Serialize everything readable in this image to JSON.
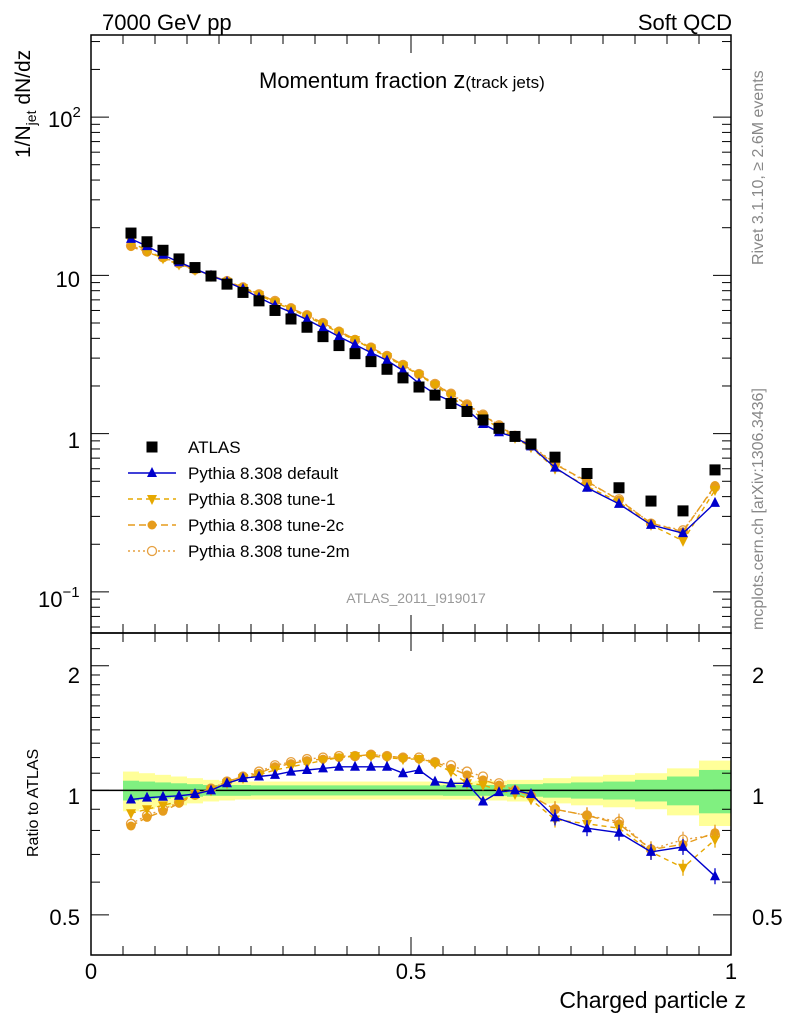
{
  "header": {
    "left": "7000 GeV pp",
    "right": "Soft QCD"
  },
  "title_main": "Momentum fraction ",
  "title_z": "z",
  "title_sub": "(track jets)",
  "side_right_top": "Rivet 3.1.10, ≥ 2.6M events",
  "side_right_bottom": "mcplots.cern.ch [arXiv:1306.3436]",
  "watermark": "ATLAS_2011_I919017",
  "ylabel_main_parts": {
    "a": "1/N",
    "sub": "jet",
    "b": " dN/dz"
  },
  "ylabel_ratio": "Ratio to ATLAS",
  "xlabel": "Charged particle z",
  "x_ticks": [
    "0",
    "0.5",
    "1"
  ],
  "main_y_ticks": {
    "hundred": "10",
    "hundred_exp": "2",
    "ten": "10",
    "one": "1",
    "tenth": "10",
    "tenth_exp": "−1"
  },
  "ratio_y_ticks": [
    "2",
    "1",
    "0.5"
  ],
  "legend": [
    {
      "label": "ATLAS"
    },
    {
      "label": "Pythia 8.308 default"
    },
    {
      "label": "Pythia 8.308 tune-1"
    },
    {
      "label": "Pythia 8.308 tune-2c"
    },
    {
      "label": "Pythia 8.308 tune-2m"
    }
  ],
  "colors": {
    "data": "#000000",
    "default": "#0000cc",
    "tune": "#e6a800",
    "tune2c": "#e69c1c",
    "tune2m": "#e6a040",
    "band_inner": "#80f080",
    "band_outer": "#ffff99"
  },
  "chart_data": {
    "type": "line",
    "xlabel": "Charged particle z",
    "ylabel": "1/N_jet dN/dz",
    "xlim": [
      0,
      1
    ],
    "ylim_main": [
      0.055,
      330
    ],
    "ylim_ratio": [
      0.4,
      2.4
    ],
    "y_scale": "log",
    "legend_position": "lower-left",
    "x": [
      0.0625,
      0.0875,
      0.1125,
      0.1375,
      0.1625,
      0.1875,
      0.2125,
      0.2375,
      0.2625,
      0.2875,
      0.3125,
      0.3375,
      0.3625,
      0.3875,
      0.4125,
      0.4375,
      0.4625,
      0.4875,
      0.5125,
      0.5375,
      0.5625,
      0.5875,
      0.6125,
      0.6375,
      0.6625,
      0.6875,
      0.725,
      0.775,
      0.825,
      0.875,
      0.925,
      0.975
    ],
    "series": [
      {
        "name": "ATLAS",
        "marker": "square",
        "values": [
          18.5,
          16.3,
          14.4,
          12.7,
          11.2,
          9.9,
          8.8,
          7.8,
          6.9,
          6.0,
          5.3,
          4.7,
          4.1,
          3.6,
          3.2,
          2.85,
          2.55,
          2.25,
          1.97,
          1.75,
          1.55,
          1.38,
          1.22,
          1.08,
          0.96,
          0.86,
          0.71,
          0.56,
          0.455,
          0.375,
          0.325,
          0.59
        ]
      },
      {
        "name": "Pythia 8.308 default",
        "marker": "triangle-up",
        "values": [
          17.0,
          15.3,
          13.5,
          12.1,
          11.0,
          9.95,
          9.1,
          8.2,
          7.25,
          6.45,
          5.85,
          5.25,
          4.65,
          4.1,
          3.65,
          3.25,
          2.9,
          2.5,
          2.08,
          1.78,
          1.6,
          1.42,
          1.15,
          1.02,
          0.95,
          0.83,
          0.61,
          0.455,
          0.36,
          0.265,
          0.235,
          0.365
        ]
      },
      {
        "name": "Pythia 8.308 tune-1",
        "marker": "triangle-down",
        "values": [
          16.3,
          14.3,
          12.8,
          11.7,
          10.8,
          9.9,
          9.1,
          8.3,
          7.5,
          6.75,
          6.1,
          5.5,
          4.9,
          4.35,
          3.9,
          3.45,
          3.05,
          2.68,
          2.35,
          2.02,
          1.72,
          1.43,
          1.26,
          1.08,
          0.94,
          0.82,
          0.6,
          0.465,
          0.37,
          0.265,
          0.21,
          0.44
        ]
      },
      {
        "name": "Pythia 8.308 tune-2c",
        "marker": "circle",
        "values": [
          15.2,
          14.0,
          12.9,
          11.8,
          10.9,
          10.0,
          9.2,
          8.4,
          7.6,
          6.85,
          6.2,
          5.6,
          5.0,
          4.45,
          3.95,
          3.5,
          3.1,
          2.72,
          2.37,
          2.05,
          1.78,
          1.52,
          1.31,
          1.12,
          0.96,
          0.83,
          0.64,
          0.5,
          0.38,
          0.272,
          0.24,
          0.47
        ]
      },
      {
        "name": "Pythia 8.308 tune-2m",
        "marker": "circle-open",
        "values": [
          15.4,
          14.2,
          13.0,
          11.9,
          10.9,
          10.0,
          9.2,
          8.4,
          7.6,
          6.9,
          6.2,
          5.6,
          5.0,
          4.4,
          3.9,
          3.5,
          3.1,
          2.72,
          2.38,
          2.06,
          1.79,
          1.53,
          1.32,
          1.13,
          0.97,
          0.84,
          0.65,
          0.49,
          0.385,
          0.27,
          0.245,
          0.46
        ]
      }
    ],
    "ratio": [
      {
        "name": "Pythia 8.308 default",
        "values": [
          0.95,
          0.96,
          0.965,
          0.97,
          0.98,
          1.0,
          1.04,
          1.07,
          1.08,
          1.09,
          1.11,
          1.12,
          1.13,
          1.14,
          1.14,
          1.14,
          1.14,
          1.1,
          1.12,
          1.05,
          1.04,
          1.04,
          0.94,
          0.99,
          1.0,
          0.98,
          0.86,
          0.81,
          0.79,
          0.71,
          0.73,
          0.62
        ]
      },
      {
        "name": "Pythia 8.308 tune-1",
        "values": [
          0.88,
          0.9,
          0.92,
          0.94,
          0.98,
          1.0,
          1.04,
          1.07,
          1.09,
          1.12,
          1.14,
          1.16,
          1.18,
          1.2,
          1.21,
          1.21,
          1.2,
          1.19,
          1.19,
          1.16,
          1.11,
          1.04,
          1.03,
          1.0,
          0.98,
          0.95,
          0.85,
          0.83,
          0.81,
          0.71,
          0.65,
          0.76
        ]
      },
      {
        "name": "Pythia 8.308 tune-2c",
        "values": [
          0.82,
          0.86,
          0.89,
          0.93,
          0.975,
          1.01,
          1.05,
          1.08,
          1.1,
          1.14,
          1.16,
          1.18,
          1.19,
          1.2,
          1.21,
          1.22,
          1.21,
          1.2,
          1.19,
          1.17,
          1.13,
          1.09,
          1.06,
          1.03,
          1.0,
          0.97,
          0.9,
          0.87,
          0.83,
          0.72,
          0.74,
          0.79
        ]
      },
      {
        "name": "Pythia 8.308 tune-2m",
        "values": [
          0.83,
          0.87,
          0.9,
          0.935,
          0.975,
          1.01,
          1.05,
          1.08,
          1.11,
          1.15,
          1.17,
          1.19,
          1.2,
          1.21,
          1.21,
          1.22,
          1.21,
          1.2,
          1.2,
          1.17,
          1.15,
          1.11,
          1.08,
          1.04,
          1.0,
          0.97,
          0.9,
          0.87,
          0.84,
          0.72,
          0.76,
          0.78
        ]
      }
    ],
    "ratio_band": {
      "inner_half_width": [
        0.055,
        0.05,
        0.045,
        0.04,
        0.035,
        0.03,
        0.03,
        0.03,
        0.028,
        0.028,
        0.028,
        0.028,
        0.028,
        0.028,
        0.028,
        0.028,
        0.028,
        0.028,
        0.028,
        0.028,
        0.03,
        0.03,
        0.03,
        0.03,
        0.035,
        0.035,
        0.04,
        0.045,
        0.05,
        0.06,
        0.08,
        0.12
      ],
      "outer_half_width": [
        0.11,
        0.1,
        0.09,
        0.08,
        0.07,
        0.06,
        0.055,
        0.05,
        0.05,
        0.05,
        0.05,
        0.05,
        0.05,
        0.05,
        0.05,
        0.05,
        0.05,
        0.05,
        0.05,
        0.05,
        0.05,
        0.05,
        0.055,
        0.055,
        0.06,
        0.06,
        0.07,
        0.08,
        0.09,
        0.1,
        0.13,
        0.18
      ]
    }
  }
}
